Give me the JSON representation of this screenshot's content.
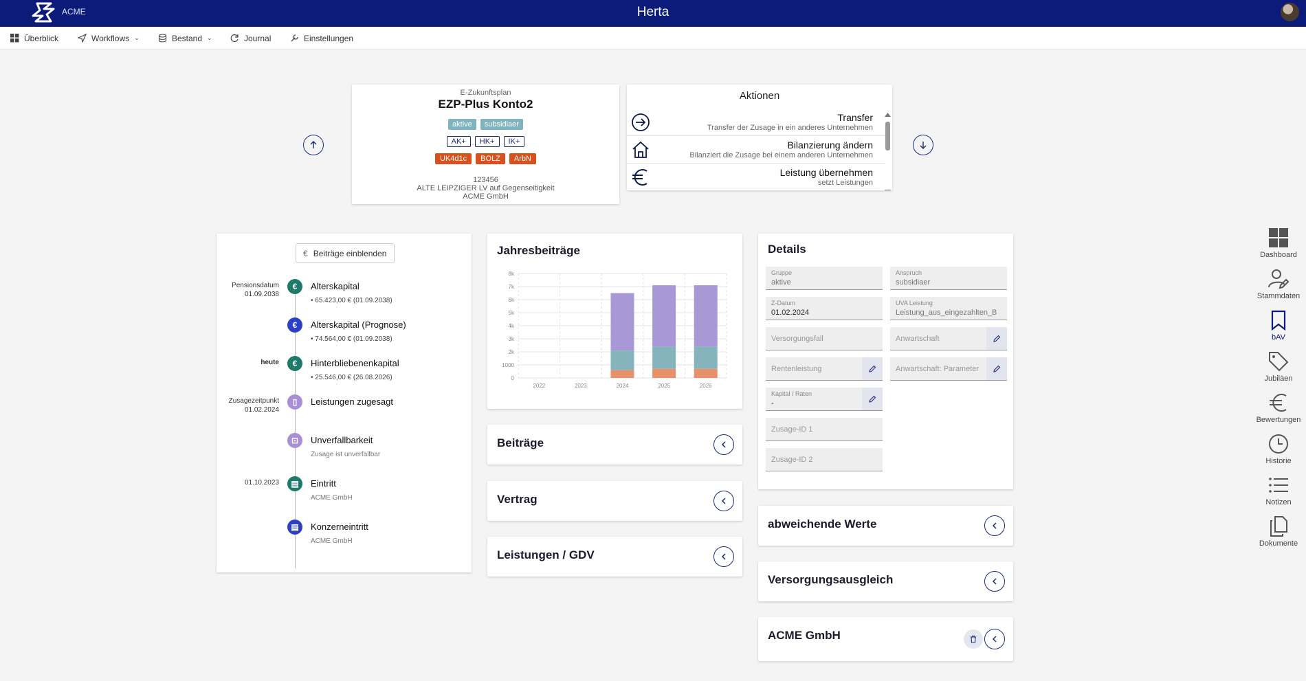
{
  "header": {
    "brand": "ACME",
    "title": "Herta"
  },
  "menu": [
    {
      "label": "Überblick",
      "icon": "grid-icon"
    },
    {
      "label": "Workflows",
      "icon": "send-icon"
    },
    {
      "label": "Bestand",
      "icon": "database-icon"
    },
    {
      "label": "Journal",
      "icon": "refresh-icon"
    },
    {
      "label": "Einstellungen",
      "icon": "wrench-icon"
    }
  ],
  "plan": {
    "subtitle": "E-Zukunftsplan",
    "title": "EZP-Plus Konto2",
    "tags_teal": [
      "aktive",
      "subsidiaer"
    ],
    "tags_outline": [
      "AK+",
      "HK+",
      "IK+"
    ],
    "tags_orange": [
      "UK4d1c",
      "BOLZ",
      "ArbN"
    ],
    "number": "123456",
    "insurer": "ALTE LEIPZIGER LV auf Gegenseitigkeit",
    "company": "ACME GmbH"
  },
  "actions": {
    "title": "Aktionen",
    "items": [
      {
        "label": "Transfer",
        "desc": "Transfer der Zusage in ein anderes Unternehmen",
        "icon": "arrow-right-circle-icon"
      },
      {
        "label": "Bilanzierung ändern",
        "desc": "Bilanziert die Zusage bei einem anderen Unternehmen",
        "icon": "house-icon"
      },
      {
        "label": "Leistung übernehmen",
        "desc": "setzt Leistungen",
        "icon": "euro-icon"
      }
    ]
  },
  "timeline": {
    "button": "Beiträge einblenden",
    "items": [
      {
        "date1": "Pensionsdatum",
        "date2": "01.09.2038",
        "title": "Alterskapital",
        "sub": "65.423,00 € (01.09.2038)",
        "color": "#1f7a6a",
        "glyph": "€"
      },
      {
        "date1": "",
        "date2": "",
        "title": "Alterskapital (Prognose)",
        "sub": "74.564,00 € (01.09.2038)",
        "color": "#2b3fc7",
        "glyph": "€"
      },
      {
        "date1": "heute",
        "date2": "",
        "title": "Hinterbliebenenkapital",
        "sub": "25.546,00 € (26.08.2026)",
        "color": "#1f7a6a",
        "glyph": "€"
      },
      {
        "date1": "Zusagezeitpunkt",
        "date2": "01.02.2024",
        "title": "Leistungen zugesagt",
        "sub": "",
        "color": "#a98fd6",
        "glyph": "▯"
      },
      {
        "date1": "",
        "date2": "",
        "title": "Unverfallbarkeit",
        "sub": "Zusage ist unverfallbar",
        "color": "#a98fd6",
        "glyph": "⊡"
      },
      {
        "date1": "01.10.2023",
        "date2": "",
        "title": "Eintritt",
        "sub": "ACME GmbH",
        "color": "#1f7a6a",
        "glyph": "▤"
      },
      {
        "date1": "",
        "date2": "",
        "title": "Konzerneintritt",
        "sub": "ACME GmbH",
        "color": "#2b3fc7",
        "glyph": "▤"
      }
    ]
  },
  "chart": {
    "title": "Jahresbeiträge"
  },
  "chart_data": {
    "type": "bar",
    "stacked": true,
    "categories": [
      "2022",
      "2023",
      "2024",
      "2025",
      "2026"
    ],
    "series": [
      {
        "values": [
          0,
          0,
          600,
          700,
          700
        ],
        "color": "#e8906a"
      },
      {
        "values": [
          0,
          0,
          1500,
          1700,
          1700
        ],
        "color": "#86b4bd"
      },
      {
        "values": [
          0,
          0,
          4400,
          4700,
          4700
        ],
        "color": "#a898d6"
      }
    ],
    "yticks": [
      "0",
      "1000",
      "2k",
      "3k",
      "4k",
      "5k",
      "6k",
      "7k",
      "8k"
    ],
    "ylim": [
      0,
      8000
    ],
    "grid": true
  },
  "sections_mid": [
    "Beiträge",
    "Vertrag",
    "Leistungen / GDV"
  ],
  "details": {
    "title": "Details",
    "fields": [
      {
        "label": "Gruppe",
        "value": "aktive"
      },
      {
        "label": "Anspruch",
        "value": "subsidiaer"
      },
      {
        "label": "Z-Datum",
        "value": "01.02.2024"
      },
      {
        "label": "UVA Leistung",
        "value": "Leistung_aus_eingezahlten_B"
      },
      {
        "placeholder": "Versorgungsfall"
      },
      {
        "placeholder": "Anwartschaft"
      },
      {
        "placeholder": "Rentenleistung"
      },
      {
        "placeholder": "Anwartschaft: Parameter"
      },
      {
        "label": "Kapital / Raten",
        "value": "-"
      },
      {
        "placeholder": "Zusage-ID 1"
      },
      {
        "placeholder": "Zusage-ID 2"
      }
    ]
  },
  "sections_right": [
    "abweichende Werte",
    "Versorgungsausgleich",
    "ACME GmbH"
  ],
  "sidenav": [
    {
      "label": "Dashboard",
      "icon": "dashboard-icon"
    },
    {
      "label": "Stammdaten",
      "icon": "user-edit-icon"
    },
    {
      "label": "bAV",
      "icon": "bookmark-icon"
    },
    {
      "label": "Jubiläen",
      "icon": "tag-icon"
    },
    {
      "label": "Bewertungen",
      "icon": "euro-icon"
    },
    {
      "label": "Historie",
      "icon": "clock-icon"
    },
    {
      "label": "Notizen",
      "icon": "list-icon"
    },
    {
      "label": "Dokumente",
      "icon": "documents-icon"
    }
  ]
}
